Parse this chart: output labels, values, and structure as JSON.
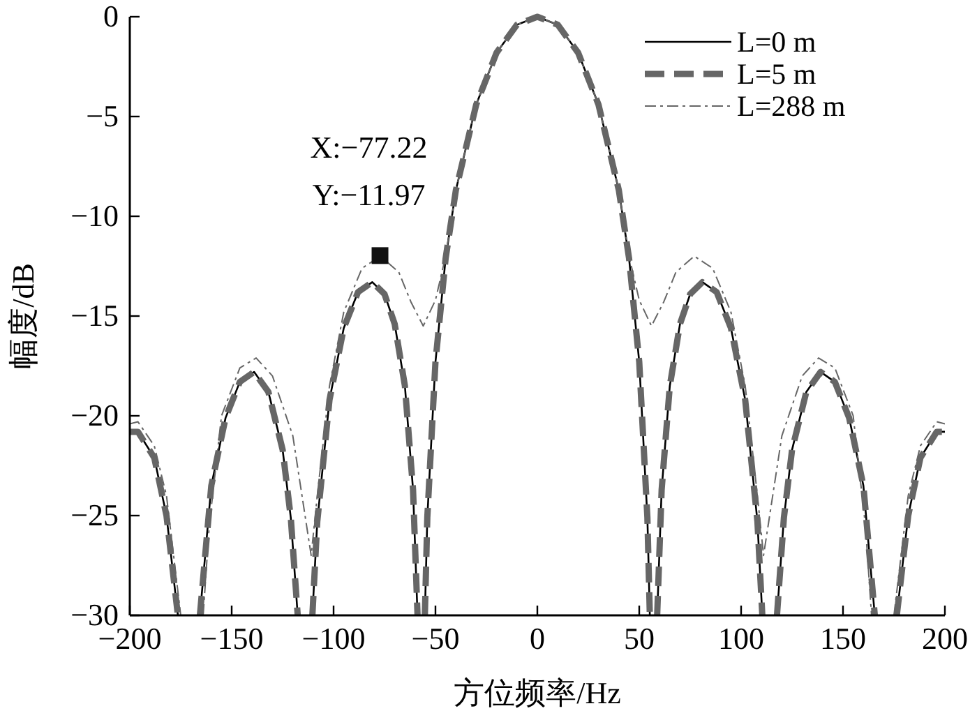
{
  "chart_data": {
    "type": "line",
    "xlabel": "方位频率/Hz",
    "ylabel": "幅度/dB",
    "xlim": [
      -200,
      200
    ],
    "ylim": [
      -30,
      0
    ],
    "xticks": [
      -200,
      -150,
      -100,
      -50,
      0,
      50,
      100,
      150,
      200
    ],
    "yticks": [
      -30,
      -25,
      -20,
      -15,
      -10,
      -5,
      0
    ],
    "legend": "top right",
    "series": [
      {
        "name": "L=0 m",
        "color": "#000000",
        "line_style": "solid",
        "x": [
          -200,
          -196,
          -188,
          -182,
          -176.4,
          -171,
          -165.6,
          -160,
          -153,
          -146,
          -139,
          -132,
          -125,
          -121,
          -117.6,
          -114,
          -110.4,
          -108,
          -102,
          -95,
          -88,
          -81,
          -75,
          -70,
          -65,
          -61,
          -58.8,
          -57,
          -55.2,
          -54,
          -50,
          -45,
          -40,
          -30,
          -20,
          -10,
          0,
          10,
          20,
          30,
          40,
          45,
          50,
          54,
          55.2,
          57,
          58.8,
          61,
          65,
          70,
          75,
          81,
          88,
          95,
          102,
          108,
          110.4,
          114,
          117.6,
          121,
          125,
          132,
          139,
          146,
          153,
          160,
          165.6,
          171,
          176.4,
          182,
          188,
          196,
          200
        ],
        "values": [
          -20.8,
          -20.8,
          -22.1,
          -25,
          -30,
          null,
          -30,
          -23.5,
          -20.1,
          -18.3,
          -17.8,
          -18.8,
          -21.7,
          -25.1,
          -30,
          null,
          -30,
          -25.3,
          -19.2,
          -15.6,
          -13.8,
          -13.3,
          -13.9,
          -15.4,
          -18.5,
          -23.7,
          -30,
          null,
          -30,
          -25.1,
          -17.3,
          -12.1,
          -8.7,
          -4.4,
          -1.8,
          -0.4,
          0,
          -0.4,
          -1.8,
          -4.4,
          -8.7,
          -12.1,
          -17.3,
          -25.1,
          -30,
          null,
          -30,
          -23.7,
          -18.5,
          -15.4,
          -13.9,
          -13.3,
          -13.8,
          -15.6,
          -19.2,
          -25.3,
          -30,
          null,
          -30,
          -25.1,
          -21.7,
          -18.8,
          -17.8,
          -18.3,
          -20.1,
          -23.5,
          -30,
          null,
          -30,
          -25,
          -22.1,
          -20.8,
          -20.8
        ]
      },
      {
        "name": "L=5 m",
        "color": "#666666",
        "line_style": "dashed",
        "x": [
          -200,
          -196,
          -188,
          -182,
          -176.4,
          -171,
          -165.6,
          -160,
          -153,
          -146,
          -139,
          -132,
          -125,
          -121,
          -117.6,
          -114,
          -110.4,
          -108,
          -102,
          -95,
          -88,
          -81,
          -75,
          -70,
          -65,
          -61,
          -58.8,
          -57,
          -55.2,
          -54,
          -50,
          -45,
          -40,
          -30,
          -20,
          -10,
          0,
          10,
          20,
          30,
          40,
          45,
          50,
          54,
          55.2,
          57,
          58.8,
          61,
          65,
          70,
          75,
          81,
          88,
          95,
          102,
          108,
          110.4,
          114,
          117.6,
          121,
          125,
          132,
          139,
          146,
          153,
          160,
          165.6,
          171,
          176.4,
          182,
          188,
          196,
          200
        ],
        "values": [
          -20.8,
          -20.8,
          -22.1,
          -25,
          -30,
          null,
          -30,
          -23.5,
          -20.1,
          -18.3,
          -17.8,
          -18.8,
          -21.7,
          -25.1,
          -30,
          null,
          -30,
          -25.3,
          -19.2,
          -15.6,
          -13.8,
          -13.3,
          -13.9,
          -15.4,
          -18.5,
          -23.7,
          -30,
          null,
          -30,
          -25.1,
          -17.3,
          -12.1,
          -8.7,
          -4.4,
          -1.8,
          -0.4,
          0,
          -0.4,
          -1.8,
          -4.4,
          -8.7,
          -12.1,
          -17.3,
          -25.1,
          -30,
          null,
          -30,
          -23.7,
          -18.5,
          -15.4,
          -13.9,
          -13.3,
          -13.8,
          -15.6,
          -19.2,
          -25.3,
          -30,
          null,
          -30,
          -25.1,
          -21.7,
          -18.8,
          -17.8,
          -18.3,
          -20.1,
          -23.5,
          -30,
          null,
          -30,
          -25,
          -22.1,
          -20.8,
          -20.8
        ]
      },
      {
        "name": "L=288 m",
        "color": "#666666",
        "line_style": "dotted",
        "x": [
          -200,
          -196,
          -188,
          -182,
          -175,
          -170,
          -164,
          -161,
          -155,
          -146,
          -138,
          -130,
          -120,
          -114,
          -111,
          -108,
          -102,
          -95,
          -86,
          -77,
          -68,
          -62,
          -56,
          -50,
          -45,
          -40,
          -30,
          -20,
          -10,
          0,
          10,
          20,
          30,
          40,
          45,
          50,
          56,
          62,
          68,
          77,
          86,
          95,
          102,
          108,
          111,
          114,
          120,
          130,
          138,
          146,
          155,
          161,
          164,
          170,
          175,
          182,
          188,
          196,
          200
        ],
        "values": [
          -20.4,
          -20.3,
          -21.5,
          -24,
          -30,
          null,
          -30,
          -25.5,
          -20,
          -17.6,
          -17.1,
          -18,
          -21,
          -25,
          -27,
          -24,
          -18.5,
          -14.8,
          -12.6,
          -12,
          -12.8,
          -14.3,
          -15.5,
          -14.2,
          -12,
          -8.7,
          -4.4,
          -1.8,
          -0.4,
          0,
          -0.4,
          -1.8,
          -4.4,
          -8.7,
          -12,
          -14.2,
          -15.5,
          -14.3,
          -12.8,
          -12,
          -12.6,
          -14.8,
          -18.5,
          -24,
          -27,
          -25,
          -21,
          -18,
          -17.1,
          -17.6,
          -20,
          -25.5,
          -30,
          null,
          -30,
          -24,
          -21.5,
          -20.3,
          -20.4
        ]
      },
      {
        "type": "scatter",
        "marker": "square",
        "color": "#111111",
        "x": [
          -77.22
        ],
        "values": [
          -11.97
        ]
      }
    ],
    "annotations": [
      {
        "text": "X:−77.22",
        "x": -77.22,
        "y": -11.97
      },
      {
        "text": "Y:−11.97",
        "x": -77.22,
        "y": -11.97
      }
    ]
  }
}
